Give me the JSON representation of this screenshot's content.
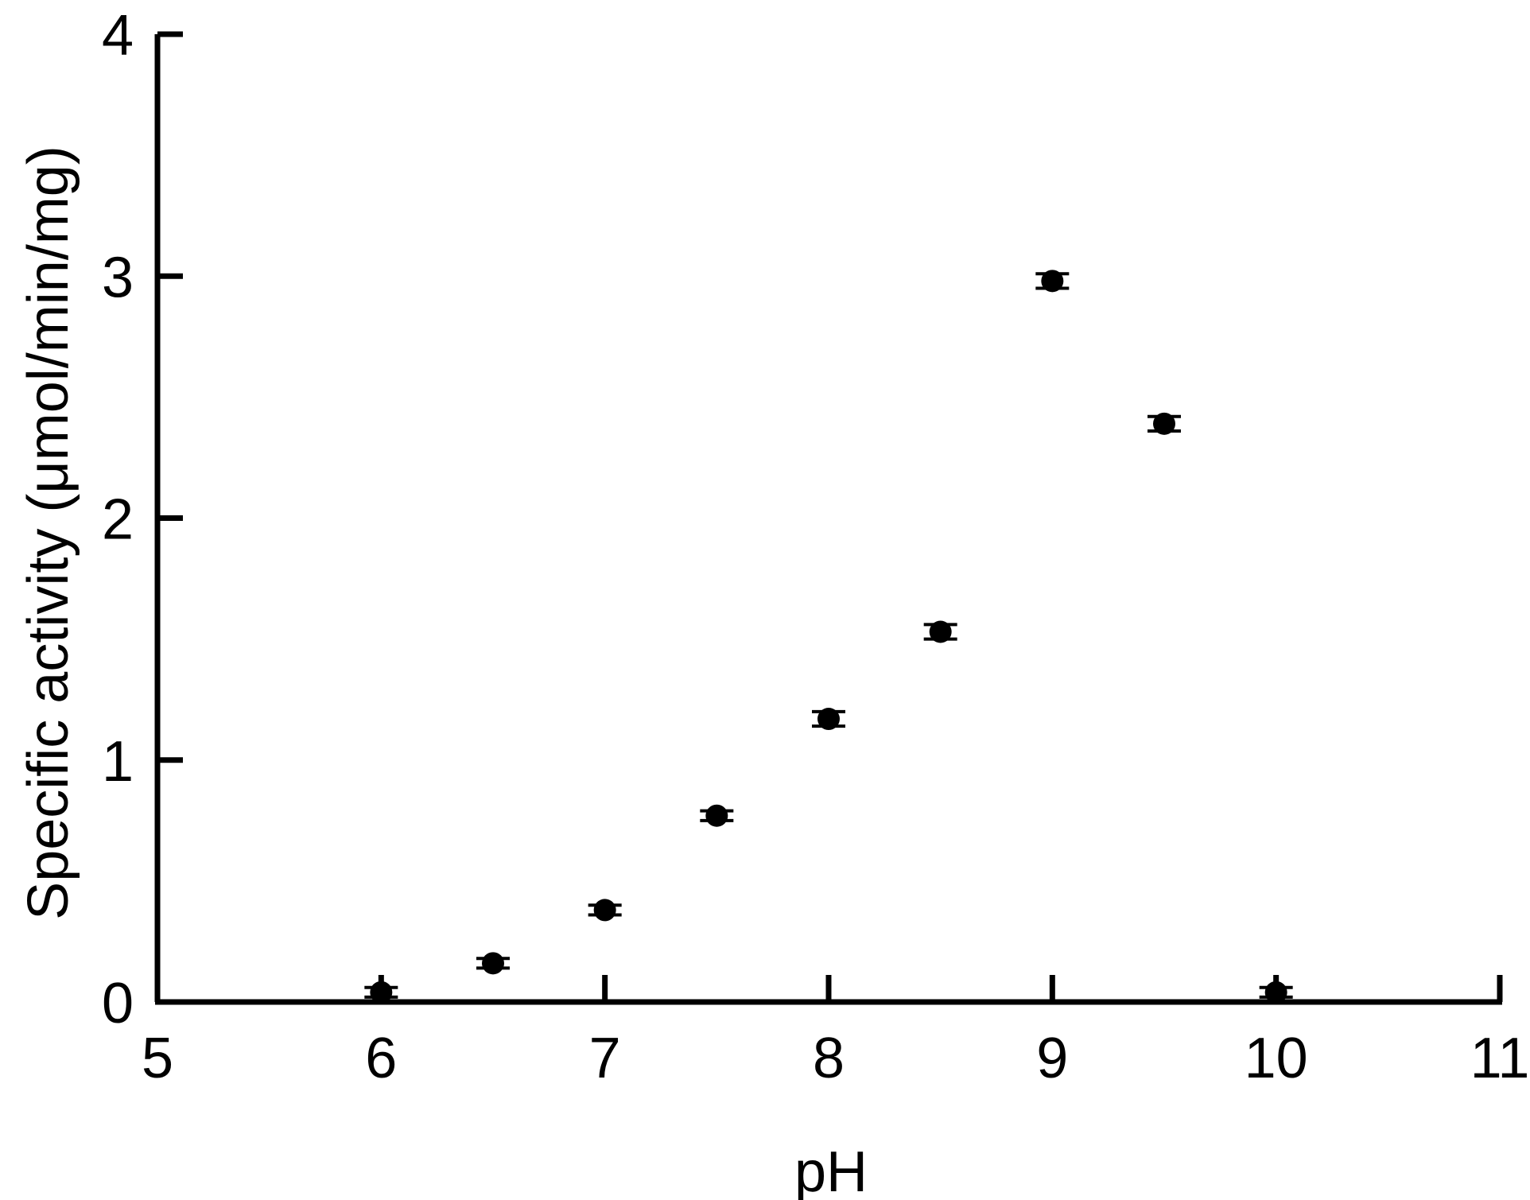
{
  "chart_data": {
    "type": "scatter",
    "title": "",
    "xlabel": "pH",
    "ylabel": "Specific activity (μmol/min/mg)",
    "xlim": [
      5,
      11
    ],
    "ylim": [
      0,
      4
    ],
    "xticks": [
      "5",
      "6",
      "7",
      "8",
      "9",
      "10",
      "11"
    ],
    "yticks": [
      "0",
      "1",
      "2",
      "3",
      "4"
    ],
    "grid": false,
    "legend": "none",
    "marker_color": "#000000",
    "series": [
      {
        "x": [
          6,
          6.5,
          7,
          7.5,
          8,
          8.5,
          9,
          9.5,
          10
        ],
        "y": [
          0.04,
          0.16,
          0.38,
          0.77,
          1.17,
          1.53,
          2.98,
          2.39,
          0.04
        ],
        "error": [
          0.02,
          0.02,
          0.02,
          0.02,
          0.03,
          0.03,
          0.03,
          0.03,
          0.02
        ]
      }
    ]
  }
}
